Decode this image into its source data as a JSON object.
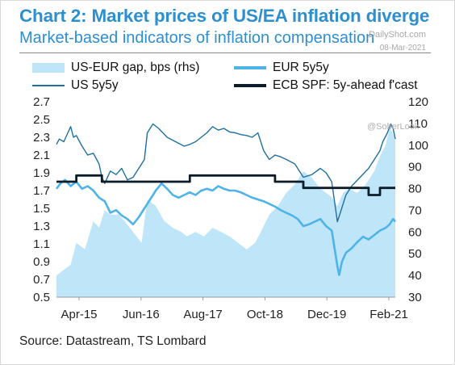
{
  "header": {
    "title": "Chart 2: Market prices of US/EA inflation diverge",
    "subtitle": "Market-based indicators of inflation compensation",
    "watermark_site": "DailyShot.com",
    "watermark_date": "08-Mar-2021",
    "watermark_handle": "@SoberLook"
  },
  "footer": {
    "source": "Source: Datastream, TS Lombard"
  },
  "colors": {
    "title": "#2d8fcf",
    "gap_fill": "#bfe6f8",
    "eur": "#4db3e8",
    "us": "#1f6f9f",
    "spf": "#0c1d29"
  },
  "chart_data": {
    "type": "line",
    "x_ticks": [
      "Apr-15",
      "Jun-16",
      "Aug-17",
      "Oct-18",
      "Dec-19",
      "Feb-21"
    ],
    "x_range": [
      2015.25,
      2021.22
    ],
    "y_left": {
      "range": [
        0.5,
        2.7
      ],
      "ticks": [
        "2.7",
        "2.5",
        "2.3",
        "2.1",
        "1.9",
        "1.7",
        "1.5",
        "1.3",
        "1.1",
        "0.9",
        "0.7",
        "0.5"
      ]
    },
    "y_right": {
      "range": [
        30,
        120
      ],
      "ticks": [
        "120",
        "110",
        "100",
        "90",
        "80",
        "70",
        "60",
        "50",
        "40",
        "30"
      ]
    },
    "legend": {
      "gap": "US-EUR gap, bps (rhs)",
      "eur": "EUR 5y5y",
      "us": "US 5y5y",
      "spf": "ECB SPF: 5y-ahead f'cast"
    },
    "series": [
      {
        "name": "US-EUR gap, bps (rhs)",
        "axis": "right",
        "kind": "area",
        "points": [
          [
            2015.25,
            40
          ],
          [
            2015.35,
            42
          ],
          [
            2015.5,
            45
          ],
          [
            2015.6,
            55
          ],
          [
            2015.75,
            52
          ],
          [
            2015.9,
            65
          ],
          [
            2016.0,
            62
          ],
          [
            2016.1,
            70
          ],
          [
            2016.2,
            68
          ],
          [
            2016.35,
            68
          ],
          [
            2016.45,
            65
          ],
          [
            2016.6,
            60
          ],
          [
            2016.75,
            55
          ],
          [
            2016.85,
            75
          ],
          [
            2017.0,
            72
          ],
          [
            2017.15,
            65
          ],
          [
            2017.3,
            62
          ],
          [
            2017.45,
            60
          ],
          [
            2017.55,
            58
          ],
          [
            2017.7,
            60
          ],
          [
            2017.85,
            58
          ],
          [
            2018.0,
            62
          ],
          [
            2018.15,
            60
          ],
          [
            2018.3,
            58
          ],
          [
            2018.45,
            55
          ],
          [
            2018.6,
            52
          ],
          [
            2018.75,
            55
          ],
          [
            2018.85,
            60
          ],
          [
            2019.0,
            68
          ],
          [
            2019.15,
            72
          ],
          [
            2019.3,
            78
          ],
          [
            2019.45,
            82
          ],
          [
            2019.6,
            88
          ],
          [
            2019.75,
            85
          ],
          [
            2019.9,
            80
          ],
          [
            2020.0,
            78
          ],
          [
            2020.1,
            76
          ],
          [
            2020.2,
            72
          ],
          [
            2020.3,
            78
          ],
          [
            2020.4,
            80
          ],
          [
            2020.55,
            78
          ],
          [
            2020.7,
            82
          ],
          [
            2020.85,
            88
          ],
          [
            2020.95,
            95
          ],
          [
            2021.05,
            100
          ],
          [
            2021.12,
            108
          ],
          [
            2021.18,
            105
          ],
          [
            2021.22,
            102
          ]
        ]
      },
      {
        "name": "US 5y5y",
        "axis": "left",
        "points": [
          [
            2015.25,
            2.22
          ],
          [
            2015.3,
            2.28
          ],
          [
            2015.38,
            2.25
          ],
          [
            2015.45,
            2.35
          ],
          [
            2015.5,
            2.42
          ],
          [
            2015.55,
            2.3
          ],
          [
            2015.6,
            2.32
          ],
          [
            2015.7,
            2.2
          ],
          [
            2015.8,
            2.1
          ],
          [
            2015.9,
            2.12
          ],
          [
            2016.0,
            2.0
          ],
          [
            2016.05,
            1.85
          ],
          [
            2016.1,
            1.78
          ],
          [
            2016.2,
            1.92
          ],
          [
            2016.3,
            1.88
          ],
          [
            2016.4,
            1.95
          ],
          [
            2016.5,
            1.82
          ],
          [
            2016.6,
            1.85
          ],
          [
            2016.7,
            1.95
          ],
          [
            2016.8,
            2.05
          ],
          [
            2016.85,
            2.35
          ],
          [
            2016.95,
            2.45
          ],
          [
            2017.05,
            2.4
          ],
          [
            2017.2,
            2.3
          ],
          [
            2017.35,
            2.25
          ],
          [
            2017.5,
            2.2
          ],
          [
            2017.6,
            2.22
          ],
          [
            2017.7,
            2.25
          ],
          [
            2017.8,
            2.3
          ],
          [
            2017.9,
            2.35
          ],
          [
            2018.0,
            2.42
          ],
          [
            2018.1,
            2.38
          ],
          [
            2018.2,
            2.4
          ],
          [
            2018.3,
            2.36
          ],
          [
            2018.4,
            2.35
          ],
          [
            2018.5,
            2.33
          ],
          [
            2018.6,
            2.32
          ],
          [
            2018.7,
            2.3
          ],
          [
            2018.8,
            2.35
          ],
          [
            2018.9,
            2.15
          ],
          [
            2019.0,
            2.05
          ],
          [
            2019.1,
            2.1
          ],
          [
            2019.2,
            2.08
          ],
          [
            2019.3,
            2.05
          ],
          [
            2019.45,
            2.0
          ],
          [
            2019.6,
            1.85
          ],
          [
            2019.75,
            1.88
          ],
          [
            2019.9,
            1.95
          ],
          [
            2020.0,
            1.9
          ],
          [
            2020.1,
            1.8
          ],
          [
            2020.2,
            1.35
          ],
          [
            2020.25,
            1.45
          ],
          [
            2020.35,
            1.65
          ],
          [
            2020.45,
            1.75
          ],
          [
            2020.6,
            1.85
          ],
          [
            2020.75,
            1.95
          ],
          [
            2020.85,
            2.05
          ],
          [
            2020.95,
            2.15
          ],
          [
            2021.0,
            2.25
          ],
          [
            2021.08,
            2.35
          ],
          [
            2021.14,
            2.45
          ],
          [
            2021.18,
            2.4
          ],
          [
            2021.22,
            2.28
          ]
        ]
      },
      {
        "name": "EUR 5y5y",
        "axis": "left",
        "points": [
          [
            2015.25,
            1.72
          ],
          [
            2015.32,
            1.78
          ],
          [
            2015.4,
            1.82
          ],
          [
            2015.5,
            1.75
          ],
          [
            2015.6,
            1.8
          ],
          [
            2015.7,
            1.72
          ],
          [
            2015.8,
            1.75
          ],
          [
            2015.9,
            1.7
          ],
          [
            2016.0,
            1.62
          ],
          [
            2016.1,
            1.58
          ],
          [
            2016.2,
            1.45
          ],
          [
            2016.3,
            1.48
          ],
          [
            2016.4,
            1.42
          ],
          [
            2016.5,
            1.38
          ],
          [
            2016.6,
            1.32
          ],
          [
            2016.7,
            1.4
          ],
          [
            2016.8,
            1.5
          ],
          [
            2016.9,
            1.6
          ],
          [
            2017.0,
            1.7
          ],
          [
            2017.1,
            1.78
          ],
          [
            2017.2,
            1.72
          ],
          [
            2017.3,
            1.65
          ],
          [
            2017.4,
            1.62
          ],
          [
            2017.5,
            1.65
          ],
          [
            2017.6,
            1.68
          ],
          [
            2017.7,
            1.65
          ],
          [
            2017.8,
            1.7
          ],
          [
            2017.9,
            1.72
          ],
          [
            2018.0,
            1.7
          ],
          [
            2018.1,
            1.75
          ],
          [
            2018.2,
            1.72
          ],
          [
            2018.3,
            1.7
          ],
          [
            2018.4,
            1.7
          ],
          [
            2018.5,
            1.68
          ],
          [
            2018.6,
            1.65
          ],
          [
            2018.7,
            1.62
          ],
          [
            2018.8,
            1.6
          ],
          [
            2018.9,
            1.58
          ],
          [
            2019.0,
            1.55
          ],
          [
            2019.1,
            1.52
          ],
          [
            2019.2,
            1.48
          ],
          [
            2019.3,
            1.45
          ],
          [
            2019.4,
            1.42
          ],
          [
            2019.5,
            1.38
          ],
          [
            2019.6,
            1.3
          ],
          [
            2019.7,
            1.32
          ],
          [
            2019.8,
            1.35
          ],
          [
            2019.9,
            1.38
          ],
          [
            2020.0,
            1.3
          ],
          [
            2020.1,
            1.25
          ],
          [
            2020.15,
            1.05
          ],
          [
            2020.2,
            0.85
          ],
          [
            2020.23,
            0.75
          ],
          [
            2020.28,
            0.9
          ],
          [
            2020.35,
            1.0
          ],
          [
            2020.45,
            1.05
          ],
          [
            2020.55,
            1.12
          ],
          [
            2020.65,
            1.18
          ],
          [
            2020.75,
            1.15
          ],
          [
            2020.85,
            1.2
          ],
          [
            2020.95,
            1.25
          ],
          [
            2021.05,
            1.28
          ],
          [
            2021.12,
            1.32
          ],
          [
            2021.18,
            1.38
          ],
          [
            2021.22,
            1.35
          ]
        ]
      },
      {
        "name": "ECB SPF: 5y-ahead f'cast",
        "axis": "left",
        "kind": "step",
        "points": [
          [
            2015.25,
            1.8
          ],
          [
            2015.6,
            1.8
          ],
          [
            2015.6,
            1.87
          ],
          [
            2016.05,
            1.87
          ],
          [
            2016.05,
            1.8
          ],
          [
            2017.6,
            1.8
          ],
          [
            2017.6,
            1.87
          ],
          [
            2019.1,
            1.87
          ],
          [
            2019.1,
            1.8
          ],
          [
            2019.6,
            1.8
          ],
          [
            2019.6,
            1.73
          ],
          [
            2020.75,
            1.73
          ],
          [
            2020.75,
            1.65
          ],
          [
            2020.95,
            1.65
          ],
          [
            2020.95,
            1.73
          ],
          [
            2021.22,
            1.73
          ]
        ]
      }
    ]
  }
}
